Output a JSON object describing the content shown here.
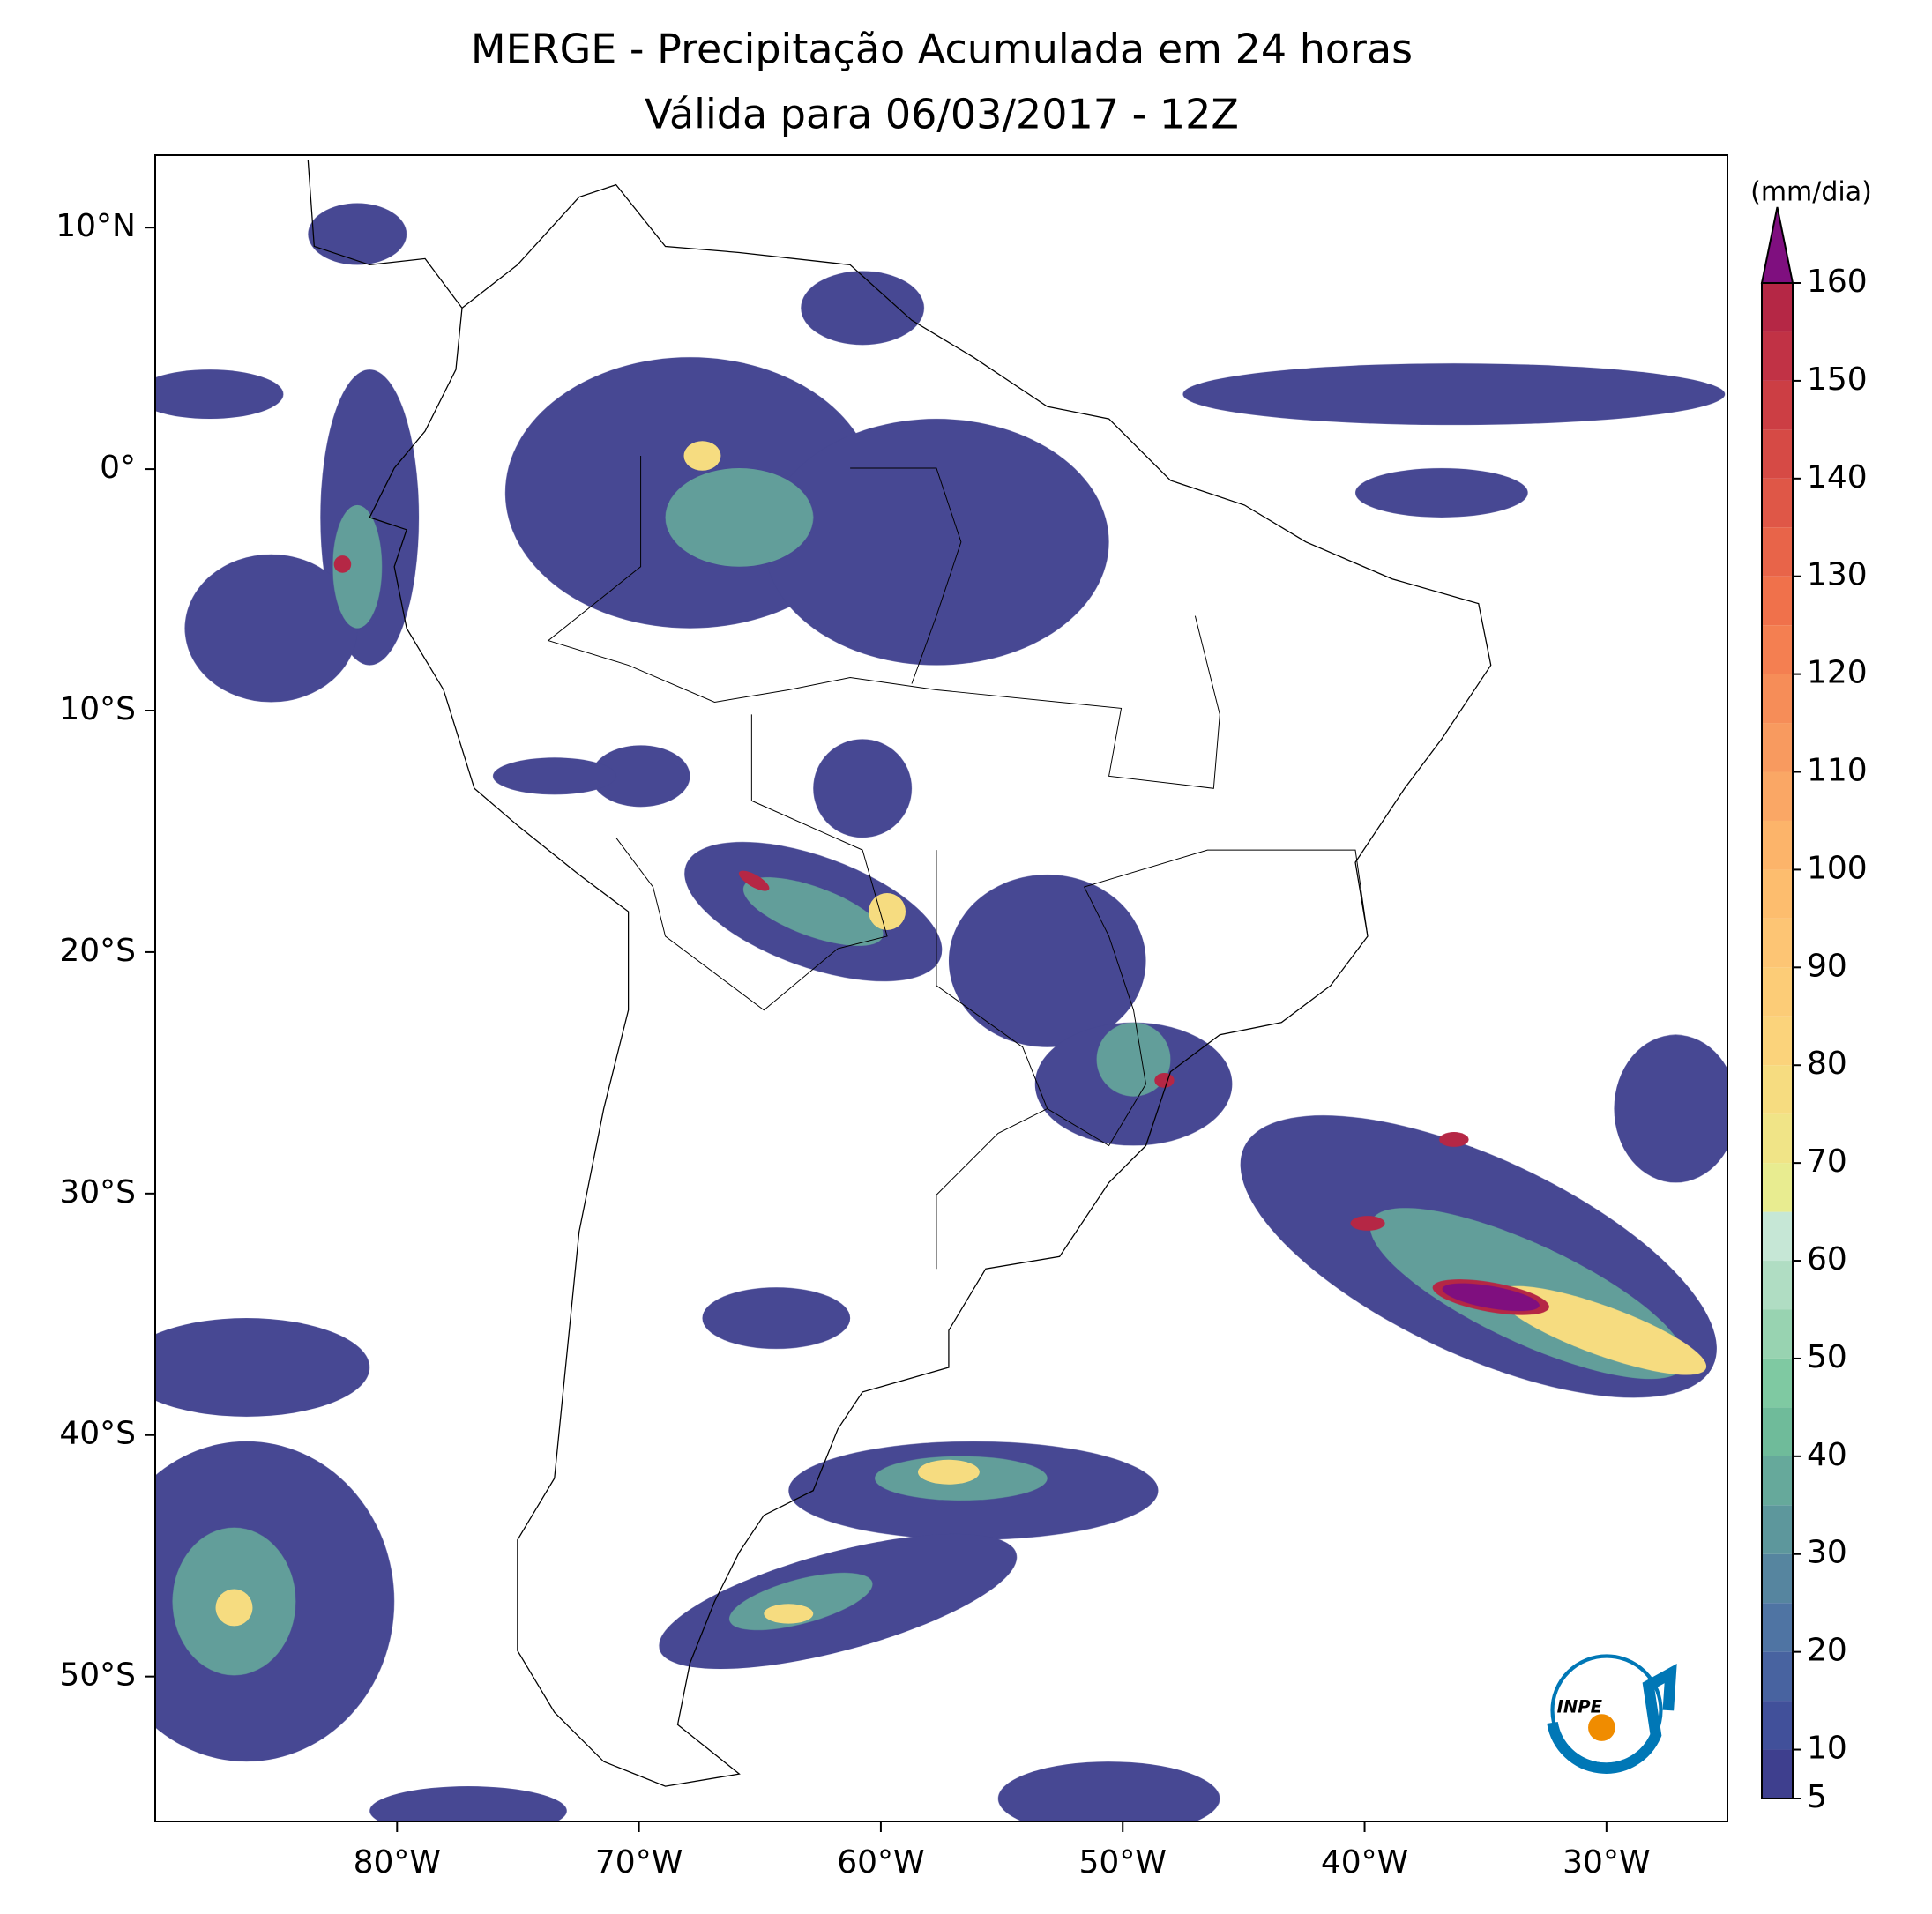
{
  "title": [
    "MERGE - Precipitação Acumulada em 24 horas",
    "Válida para 06/03/2017 - 12Z"
  ],
  "map": {
    "lonlim": [
      -90,
      -25
    ],
    "latlim": [
      -56,
      13
    ],
    "lonticks": [
      {
        "value": -80,
        "label": "80°W"
      },
      {
        "value": -70,
        "label": "70°W"
      },
      {
        "value": -60,
        "label": "60°W"
      },
      {
        "value": -50,
        "label": "50°W"
      },
      {
        "value": -40,
        "label": "40°W"
      },
      {
        "value": -30,
        "label": "30°W"
      }
    ],
    "latticks": [
      {
        "value": 10,
        "label": "10°N"
      },
      {
        "value": 0,
        "label": "0°"
      },
      {
        "value": -10,
        "label": "10°S"
      },
      {
        "value": -20,
        "label": "20°S"
      },
      {
        "value": -30,
        "label": "30°S"
      },
      {
        "value": -40,
        "label": "40°S"
      },
      {
        "value": -50,
        "label": "50°S"
      }
    ]
  },
  "colorbar": {
    "label": "(mm/dia)",
    "ticks": [
      5,
      10,
      20,
      30,
      40,
      50,
      60,
      70,
      80,
      90,
      100,
      110,
      120,
      130,
      140,
      150,
      160
    ],
    "levels": [
      5,
      10,
      15,
      20,
      25,
      30,
      35,
      40,
      45,
      50,
      55,
      60,
      65,
      70,
      75,
      80,
      85,
      90,
      95,
      100,
      105,
      110,
      115,
      120,
      125,
      130,
      135,
      140,
      145,
      150,
      155,
      160
    ],
    "colors": [
      "#3e3f8e",
      "#41509a",
      "#4863a0",
      "#4f74a3",
      "#56859f",
      "#5d979c",
      "#66a99b",
      "#6fbb9a",
      "#7fc9a2",
      "#98d3b1",
      "#b0ddc3",
      "#c6e7d6",
      "#e8ec90",
      "#f0e487",
      "#f6dc80",
      "#fbd37b",
      "#fccc77",
      "#fdc574",
      "#fdbd6e",
      "#fcb46a",
      "#faa765",
      "#f89a5f",
      "#f68d58",
      "#f47f51",
      "#f0714b",
      "#e86449",
      "#df5747",
      "#d64a45",
      "#cc3e44",
      "#c13245",
      "#b52745"
    ],
    "extend_color": "#7f0f7f"
  },
  "logo": "INPE"
}
